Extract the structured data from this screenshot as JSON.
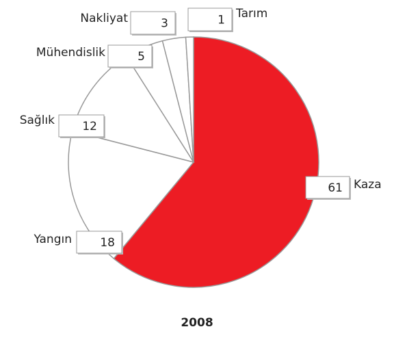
{
  "chart_data": {
    "type": "pie",
    "title": "2008",
    "categories": [
      "Kaza",
      "Yangın",
      "Sağlık",
      "Mühendislik",
      "Nakliyat",
      "Tarım"
    ],
    "values": [
      61,
      18,
      12,
      5,
      3,
      1
    ],
    "colors": [
      "#ed1c24",
      "#ffffff",
      "#ffffff",
      "#ffffff",
      "#ffffff",
      "#ffffff"
    ]
  }
}
